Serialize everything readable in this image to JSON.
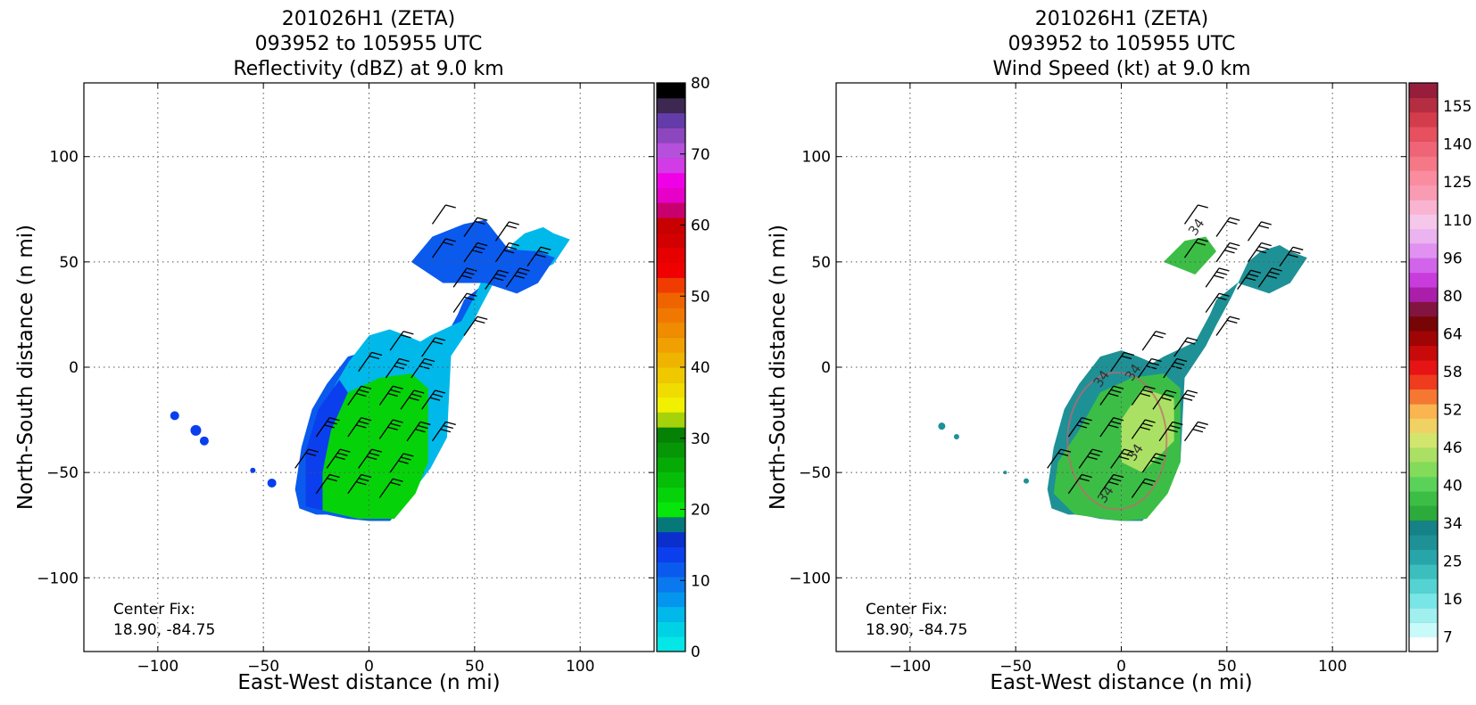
{
  "chart_data": [
    {
      "type": "heatmap",
      "title": [
        "201026H1 (ZETA)",
        "093952 to 105955 UTC",
        "Reflectivity (dBZ) at 9.0 km"
      ],
      "xlabel": "East-West distance (n mi)",
      "ylabel": "North-South distance (n mi)",
      "xlim": [
        -135,
        135
      ],
      "ylim": [
        -135,
        135
      ],
      "xticks": [
        -100,
        -50,
        0,
        50,
        100
      ],
      "yticks": [
        -100,
        -50,
        0,
        50,
        100
      ],
      "grid": true,
      "annotation": [
        "Center Fix:",
        "18.90, -84.75"
      ],
      "colorbar": {
        "vmin": 0,
        "vmax": 80,
        "ticks": [
          0,
          10,
          20,
          30,
          40,
          50,
          60,
          70,
          80
        ],
        "colors": [
          "#05e6e6",
          "#00d2e6",
          "#00b9ea",
          "#0496ee",
          "#0a78ee",
          "#0a5aee",
          "#0b3fee",
          "#0a2fcd",
          "#07787a",
          "#06e60a",
          "#06d20a",
          "#06be08",
          "#05aa05",
          "#069606",
          "#058205",
          "#a5d20a",
          "#f0f000",
          "#f0dc00",
          "#f0c800",
          "#eeb400",
          "#f0a000",
          "#f08c00",
          "#f07800",
          "#f06400",
          "#f03c00",
          "#f00000",
          "#e60000",
          "#d20000",
          "#c80000",
          "#c8006e",
          "#e600c8",
          "#f000e6",
          "#d23ce6",
          "#b450dc",
          "#8c46be",
          "#643caa",
          "#3c2850",
          "#000000"
        ]
      },
      "region": {
        "x": [
          -35,
          -33,
          -25,
          -20,
          -10,
          0,
          10,
          20,
          28,
          30,
          40,
          45,
          52,
          60,
          66,
          75,
          80,
          88,
          80,
          70,
          55,
          45,
          42,
          35,
          20,
          15,
          8,
          0,
          -10,
          -20,
          -27,
          -32
        ],
        "y": [
          -58,
          -67,
          -70,
          -70,
          -72,
          -73,
          -73,
          -60,
          -45,
          -5,
          10,
          20,
          33,
          50,
          55,
          58,
          55,
          52,
          40,
          35,
          40,
          32,
          25,
          12,
          5,
          2,
          5,
          8,
          5,
          -8,
          -20,
          -38
        ]
      },
      "barbs": [
        {
          "x": 30,
          "y": 68,
          "n": 1
        },
        {
          "x": 45,
          "y": 62,
          "n": 2
        },
        {
          "x": 60,
          "y": 60,
          "n": 2
        },
        {
          "x": 30,
          "y": 52,
          "n": 2
        },
        {
          "x": 45,
          "y": 50,
          "n": 3
        },
        {
          "x": 60,
          "y": 50,
          "n": 3
        },
        {
          "x": 75,
          "y": 48,
          "n": 3
        },
        {
          "x": 40,
          "y": 38,
          "n": 3
        },
        {
          "x": 55,
          "y": 37,
          "n": 3
        },
        {
          "x": 65,
          "y": 38,
          "n": 3
        },
        {
          "x": 40,
          "y": 26,
          "n": 2
        },
        {
          "x": 45,
          "y": 15,
          "n": 2
        },
        {
          "x": 10,
          "y": 8,
          "n": 2
        },
        {
          "x": 25,
          "y": 5,
          "n": 2
        },
        {
          "x": -5,
          "y": -2,
          "n": 2
        },
        {
          "x": 8,
          "y": -5,
          "n": 3
        },
        {
          "x": 20,
          "y": -5,
          "n": 3
        },
        {
          "x": -10,
          "y": -18,
          "n": 3
        },
        {
          "x": 5,
          "y": -18,
          "n": 3
        },
        {
          "x": 15,
          "y": -20,
          "n": 3
        },
        {
          "x": 25,
          "y": -20,
          "n": 3
        },
        {
          "x": -25,
          "y": -33,
          "n": 3
        },
        {
          "x": -10,
          "y": -33,
          "n": 3
        },
        {
          "x": 5,
          "y": -34,
          "n": 3
        },
        {
          "x": 18,
          "y": -35,
          "n": 3
        },
        {
          "x": 30,
          "y": -35,
          "n": 3
        },
        {
          "x": -35,
          "y": -48,
          "n": 2
        },
        {
          "x": -20,
          "y": -48,
          "n": 3
        },
        {
          "x": -5,
          "y": -48,
          "n": 3
        },
        {
          "x": 10,
          "y": -50,
          "n": 3
        },
        {
          "x": -25,
          "y": -60,
          "n": 2
        },
        {
          "x": -10,
          "y": -60,
          "n": 3
        },
        {
          "x": 5,
          "y": -62,
          "n": 2
        }
      ]
    },
    {
      "type": "heatmap",
      "title": [
        "201026H1 (ZETA)",
        "093952 to 105955 UTC",
        "Wind Speed (kt) at 9.0 km"
      ],
      "xlabel": "East-West distance (n mi)",
      "ylabel": "North-South distance (n mi)",
      "xlim": [
        -135,
        135
      ],
      "ylim": [
        -135,
        135
      ],
      "xticks": [
        -100,
        -50,
        0,
        50,
        100
      ],
      "yticks": [
        -100,
        -50,
        0,
        50,
        100
      ],
      "grid": true,
      "annotation": [
        "Center Fix:",
        "18.90, -84.75"
      ],
      "contour_labels": [
        "34",
        "34",
        "34",
        "34",
        "34"
      ],
      "colorbar": {
        "ticks_labels": [
          "7",
          "16",
          "25",
          "34",
          "40",
          "46",
          "52",
          "58",
          "64",
          "80",
          "96",
          "110",
          "125",
          "140",
          "155"
        ],
        "colors": [
          "#ffffff",
          "#c8fafa",
          "#a0f0f0",
          "#78e6e6",
          "#55d2d2",
          "#3cbebe",
          "#28a5aa",
          "#1e9196",
          "#148287",
          "#2daa3c",
          "#3cbe46",
          "#5ad25a",
          "#82dc5a",
          "#aae164",
          "#d2e66e",
          "#f0d264",
          "#fab450",
          "#f57832",
          "#f03c1e",
          "#e61414",
          "#c80a0a",
          "#a00505",
          "#780505",
          "#821440",
          "#aa1eaa",
          "#c83cdc",
          "#d264eb",
          "#e191f0",
          "#ebb4f0",
          "#f5c8eb",
          "#fab4d2",
          "#fa9bb4",
          "#fa8ca0",
          "#f57887",
          "#f06478",
          "#e6505f",
          "#d23c4b",
          "#b42d41",
          "#961e3c"
        ]
      },
      "region": {
        "x": [
          -35,
          -33,
          -25,
          -20,
          -10,
          0,
          10,
          20,
          28,
          30,
          40,
          45,
          52,
          60,
          66,
          75,
          80,
          88,
          80,
          70,
          55,
          45,
          42,
          35,
          20,
          15,
          8,
          0,
          -10,
          -20,
          -27,
          -32
        ],
        "y": [
          -58,
          -67,
          -70,
          -70,
          -72,
          -73,
          -73,
          -60,
          -45,
          -5,
          10,
          20,
          33,
          50,
          55,
          58,
          55,
          52,
          40,
          35,
          40,
          32,
          25,
          12,
          5,
          2,
          5,
          8,
          5,
          -8,
          -20,
          -38
        ]
      },
      "barbs": [
        {
          "x": 30,
          "y": 68,
          "n": 1
        },
        {
          "x": 45,
          "y": 62,
          "n": 2
        },
        {
          "x": 60,
          "y": 60,
          "n": 2
        },
        {
          "x": 30,
          "y": 52,
          "n": 2
        },
        {
          "x": 45,
          "y": 50,
          "n": 3
        },
        {
          "x": 60,
          "y": 50,
          "n": 3
        },
        {
          "x": 75,
          "y": 48,
          "n": 3
        },
        {
          "x": 40,
          "y": 38,
          "n": 3
        },
        {
          "x": 55,
          "y": 37,
          "n": 3
        },
        {
          "x": 65,
          "y": 38,
          "n": 3
        },
        {
          "x": 40,
          "y": 26,
          "n": 2
        },
        {
          "x": 45,
          "y": 15,
          "n": 2
        },
        {
          "x": 10,
          "y": 8,
          "n": 2
        },
        {
          "x": 25,
          "y": 5,
          "n": 2
        },
        {
          "x": -5,
          "y": -2,
          "n": 2
        },
        {
          "x": 8,
          "y": -5,
          "n": 3
        },
        {
          "x": 20,
          "y": -5,
          "n": 3
        },
        {
          "x": -10,
          "y": -18,
          "n": 3
        },
        {
          "x": 5,
          "y": -18,
          "n": 3
        },
        {
          "x": 15,
          "y": -20,
          "n": 3
        },
        {
          "x": 25,
          "y": -20,
          "n": 3
        },
        {
          "x": -25,
          "y": -33,
          "n": 3
        },
        {
          "x": -10,
          "y": -33,
          "n": 3
        },
        {
          "x": 5,
          "y": -34,
          "n": 3
        },
        {
          "x": 18,
          "y": -35,
          "n": 3
        },
        {
          "x": 30,
          "y": -35,
          "n": 3
        },
        {
          "x": -35,
          "y": -48,
          "n": 2
        },
        {
          "x": -20,
          "y": -48,
          "n": 3
        },
        {
          "x": -5,
          "y": -48,
          "n": 3
        },
        {
          "x": 10,
          "y": -50,
          "n": 3
        },
        {
          "x": -25,
          "y": -60,
          "n": 2
        },
        {
          "x": -10,
          "y": -60,
          "n": 3
        },
        {
          "x": 5,
          "y": -62,
          "n": 2
        }
      ]
    }
  ]
}
